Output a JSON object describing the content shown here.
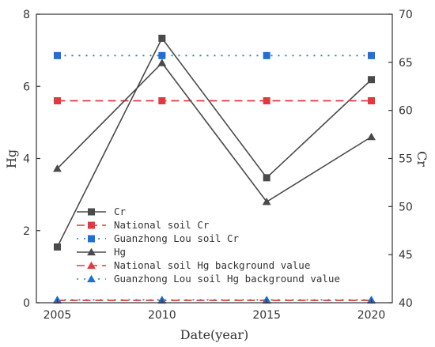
{
  "chart_data": {
    "type": "line",
    "x": [
      2005,
      2010,
      2015,
      2020
    ],
    "xlabel": "Date(year)",
    "ylabel_left": "Hg",
    "ylabel_right": "Cr",
    "xlim": [
      2004,
      2021
    ],
    "ylim_left": [
      0,
      8
    ],
    "ylim_right": [
      40,
      70
    ],
    "xticks": [
      2005,
      2010,
      2015,
      2020
    ],
    "yticks_left": [
      0,
      2,
      4,
      6,
      8
    ],
    "yticks_right": [
      40,
      45,
      50,
      55,
      60,
      65,
      70
    ],
    "grid": false,
    "legend_position": "bottom-left",
    "series": [
      {
        "name": "Cr",
        "axis": "right",
        "values": [
          45.8,
          67.5,
          53.0,
          63.2
        ],
        "color": "#4a4a4a",
        "marker": "square",
        "dash": "solid"
      },
      {
        "name": "National soil Cr",
        "axis": "right",
        "values": [
          61.0,
          61.0,
          61.0,
          61.0
        ],
        "color": "#e2393f",
        "marker": "square",
        "dash": "dashed"
      },
      {
        "name": "Guanzhong Lou soil Cr",
        "axis": "right",
        "values": [
          65.7,
          65.7,
          65.7,
          65.7
        ],
        "color": "#1f6fd6",
        "line_color": "#1a8a8a",
        "marker": "square",
        "dash": "dotted"
      },
      {
        "name": "Hg",
        "axis": "left",
        "values": [
          3.72,
          6.65,
          2.8,
          4.6
        ],
        "color": "#4a4a4a",
        "marker": "triangle",
        "dash": "solid"
      },
      {
        "name": "National soil Hg background value",
        "axis": "left",
        "values": [
          0.065,
          0.065,
          0.065,
          0.065
        ],
        "color": "#e2393f",
        "marker": "triangle",
        "dash": "dashed"
      },
      {
        "name": "Guanzhong Lou soil Hg background value",
        "axis": "left",
        "values": [
          0.08,
          0.08,
          0.08,
          0.08
        ],
        "color": "#1f6fd6",
        "line_color": "#1a8a8a",
        "marker": "triangle",
        "dash": "dotted"
      }
    ]
  }
}
